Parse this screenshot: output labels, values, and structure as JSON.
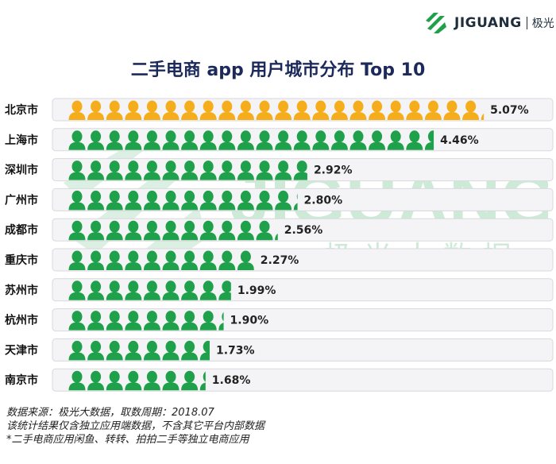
{
  "brand": {
    "name": "JIGUANG",
    "cn": "极光"
  },
  "watermark": {
    "text": "JIGUANG",
    "cn": "— 极光大数据"
  },
  "chart_data": {
    "type": "bar",
    "title": "二手电商 app 用户城市分布 Top 10",
    "categories": [
      "北京市",
      "上海市",
      "深圳市",
      "广州市",
      "成都市",
      "重庆市",
      "苏州市",
      "杭州市",
      "天津市",
      "南京市"
    ],
    "values": [
      5.07,
      4.46,
      2.92,
      2.8,
      2.56,
      2.27,
      1.99,
      1.9,
      1.73,
      1.68
    ],
    "value_labels": [
      "5.07%",
      "4.46%",
      "2.92%",
      "2.80%",
      "2.56%",
      "2.27%",
      "1.99%",
      "1.90%",
      "1.73%",
      "1.68%"
    ],
    "unit": "%",
    "colors": {
      "highlight": "#f5ad1b",
      "normal": "#1fa14b"
    },
    "grid": false,
    "legend": "none"
  },
  "footer": {
    "line1": "数据来源：极光大数据，取数周期：2018.07",
    "line2": "该统计结果仅含独立应用端数据，不含其它平台内部数据",
    "line3": "*二手电商应用闲鱼、转转、拍拍二手等独立电商应用"
  }
}
